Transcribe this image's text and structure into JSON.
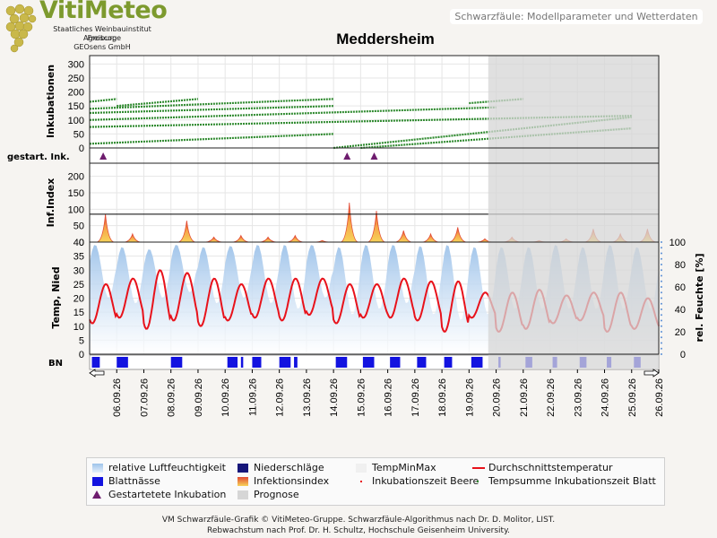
{
  "logo": {
    "title": "VitiMeteo",
    "line1": "Staatliches Weinbauinstitut Freiburg",
    "line2": "Agroscope",
    "line3": "GEOsens GmbH"
  },
  "header": {
    "title": "Schwarzfäule: Modellparameter und Wetterdaten"
  },
  "colors": {
    "humidity": "#9ec3ea",
    "temperature": "#e8121b",
    "incubation": "#2f8a2f",
    "leaf_wetness": "#1313e0",
    "precipitation": "#16167a",
    "marker": "#6e1c6e",
    "prognosis": "#d6d6d6",
    "infection_fill": "#f7d35a",
    "infection_line": "#e24a33"
  },
  "chart_data": {
    "type": "line",
    "title": "Meddersheim",
    "x_start": "05.09.26",
    "prognosis_start": "19.09.26 17:00",
    "x_ticks": [
      "06.09.26",
      "07.09.26",
      "08.09.26",
      "09.09.26",
      "10.09.26",
      "11.09.26",
      "12.09.26",
      "13.09.26",
      "14.09.26",
      "15.09.26",
      "16.09.26",
      "17.09.26",
      "18.09.26",
      "19.09.26",
      "20.09.26",
      "21.09.26",
      "22.09.26",
      "23.09.26",
      "24.09.26",
      "25.09.26",
      "26.09.26"
    ],
    "panels": {
      "incubation": {
        "ylabel": "Inkubationen",
        "ylim": [
          0,
          330
        ],
        "yticks": [
          "0",
          "50",
          "100",
          "150",
          "200",
          "250",
          "300"
        ],
        "series": [
          {
            "x": [
              "05.09.26",
              "25.09.26"
            ],
            "y": [
              75,
              115
            ]
          },
          {
            "x": [
              "05.09.26",
              "20.09.26"
            ],
            "y": [
              100,
              145
            ]
          },
          {
            "x": [
              "05.09.26",
              "14.09.26"
            ],
            "y": [
              125,
              150
            ]
          },
          {
            "x": [
              "05.09.26",
              "14.09.26"
            ],
            "y": [
              140,
              175
            ]
          },
          {
            "x": [
              "05.09.26",
              "06.09.26"
            ],
            "y": [
              165,
              175
            ]
          },
          {
            "x": [
              "06.09.26",
              "09.09.26"
            ],
            "y": [
              150,
              175
            ]
          },
          {
            "x": [
              "19.09.26",
              "21.09.26"
            ],
            "y": [
              160,
              175
            ]
          },
          {
            "x": [
              "05.09.26",
              "14.09.26"
            ],
            "y": [
              15,
              50
            ]
          },
          {
            "x": [
              "14.09.26",
              "25.09.26"
            ],
            "y": [
              0,
              110
            ]
          },
          {
            "x": [
              "15.09.26",
              "25.09.26"
            ],
            "y": [
              0,
              70
            ]
          }
        ]
      },
      "started_incubation": {
        "label": "gestart. Ink.",
        "x": [
          "05.09.26 12:00",
          "14.09.26 12:00",
          "15.09.26 12:00"
        ]
      },
      "infection_index": {
        "ylabel": "Inf.Index",
        "ylim": [
          0,
          240
        ],
        "yticks": [
          "0",
          "50",
          "100",
          "150",
          "200"
        ],
        "threshold": 85,
        "peaks": [
          {
            "x": "05.09.26 14:00",
            "y": 85
          },
          {
            "x": "06.09.26 14:00",
            "y": 25
          },
          {
            "x": "08.09.26 14:00",
            "y": 65
          },
          {
            "x": "09.09.26 14:00",
            "y": 15
          },
          {
            "x": "10.09.26 14:00",
            "y": 20
          },
          {
            "x": "11.09.26 14:00",
            "y": 15
          },
          {
            "x": "12.09.26 14:00",
            "y": 20
          },
          {
            "x": "13.09.26 14:00",
            "y": 5
          },
          {
            "x": "14.09.26 14:00",
            "y": 120
          },
          {
            "x": "15.09.26 14:00",
            "y": 95
          },
          {
            "x": "16.09.26 14:00",
            "y": 35
          },
          {
            "x": "17.09.26 14:00",
            "y": 25
          },
          {
            "x": "18.09.26 14:00",
            "y": 45
          },
          {
            "x": "19.09.26 14:00",
            "y": 10
          },
          {
            "x": "20.09.26 14:00",
            "y": 15
          },
          {
            "x": "21.09.26 14:00",
            "y": 5
          },
          {
            "x": "22.09.26 14:00",
            "y": 10
          },
          {
            "x": "23.09.26 14:00",
            "y": 40
          },
          {
            "x": "24.09.26 14:00",
            "y": 25
          },
          {
            "x": "25.09.26 14:00",
            "y": 40
          }
        ]
      },
      "weather": {
        "ylabel": "Temp, Nied",
        "ylim": [
          0,
          40
        ],
        "yticks": [
          "0",
          "5",
          "10",
          "15",
          "20",
          "25",
          "30",
          "35",
          "40"
        ],
        "y2label": "rel. Feuchte [%]",
        "y2lim": [
          0,
          100
        ],
        "y2ticks": [
          "0",
          "20",
          "40",
          "60",
          "80",
          "100"
        ],
        "temperature_daily_min": [
          11,
          13,
          9,
          12,
          10,
          12,
          13,
          12,
          14,
          11,
          13,
          13,
          12,
          8,
          13,
          8,
          9,
          11,
          12,
          8,
          9
        ],
        "temperature_daily_max": [
          25,
          27,
          30,
          29,
          27,
          25,
          27,
          27,
          27,
          25,
          25,
          27,
          26,
          26,
          22,
          22,
          23,
          21,
          22,
          22,
          20
        ],
        "humidity_daily_min": [
          50,
          45,
          50,
          55,
          45,
          50,
          45,
          40,
          50,
          35,
          40,
          45,
          35,
          30,
          35,
          40,
          40,
          40,
          40,
          40,
          40
        ],
        "humidity_daily_max": [
          98,
          96,
          94,
          98,
          96,
          97,
          98,
          98,
          98,
          96,
          98,
          98,
          97,
          98,
          96,
          96,
          96,
          98,
          96,
          98,
          96
        ]
      },
      "leaf_wetness": {
        "label": "BN",
        "intervals": [
          [
            "05.09.26 02:00",
            "05.09.26 09:00"
          ],
          [
            "06.09.26 00:00",
            "06.09.26 10:00"
          ],
          [
            "08.09.26 00:00",
            "08.09.26 10:00"
          ],
          [
            "10.09.26 02:00",
            "10.09.26 11:00"
          ],
          [
            "10.09.26 14:00",
            "10.09.26 16:00"
          ],
          [
            "11.09.26 00:00",
            "11.09.26 08:00"
          ],
          [
            "12.09.26 00:00",
            "12.09.26 10:00"
          ],
          [
            "12.09.26 13:00",
            "12.09.26 16:00"
          ],
          [
            "14.09.26 02:00",
            "14.09.26 12:00"
          ],
          [
            "15.09.26 02:00",
            "15.09.26 12:00"
          ],
          [
            "16.09.26 02:00",
            "16.09.26 11:00"
          ],
          [
            "17.09.26 02:00",
            "17.09.26 10:00"
          ],
          [
            "18.09.26 02:00",
            "18.09.26 09:00"
          ],
          [
            "19.09.26 02:00",
            "19.09.26 12:00"
          ],
          [
            "20.09.26 02:00",
            "20.09.26 04:00"
          ],
          [
            "21.09.26 02:00",
            "21.09.26 08:00"
          ],
          [
            "22.09.26 02:00",
            "22.09.26 06:00"
          ],
          [
            "23.09.26 02:00",
            "23.09.26 08:00"
          ],
          [
            "24.09.26 02:00",
            "24.09.26 06:00"
          ],
          [
            "25.09.26 02:00",
            "25.09.26 08:00"
          ]
        ]
      }
    }
  },
  "legend": {
    "items": [
      {
        "label": "relative Luftfeuchtigkeit",
        "icon": "humidity-swatch"
      },
      {
        "label": "Niederschläge",
        "icon": "precipitation-swatch"
      },
      {
        "label": "TempMinMax",
        "icon": "tempminmax-swatch"
      },
      {
        "label": "Durchschnittstemperatur",
        "icon": "line-swatch"
      },
      {
        "label": "Blattnässe",
        "icon": "leaf-wetness-swatch"
      },
      {
        "label": "Infektionsindex",
        "icon": "infection-swatch"
      },
      {
        "label": "Inkubationszeit Beere",
        "icon": "dot-swatch"
      },
      {
        "label": "Tempsumme Inkubationszeit Blatt",
        "icon": "dot-swatch"
      },
      {
        "label": "Gestartetete Inkubation",
        "icon": "triangle-swatch"
      },
      {
        "label": "Prognose",
        "icon": "prognosis-swatch"
      }
    ]
  },
  "footer": {
    "line1": "VM Schwarzfäule-Grafik © VitiMeteo-Gruppe. Schwarzfäule-Algorithmus nach Dr. D. Molitor, LIST.",
    "line2": "Rebwachstum nach Prof. Dr. H. Schultz, Hochschule Geisenheim University."
  }
}
